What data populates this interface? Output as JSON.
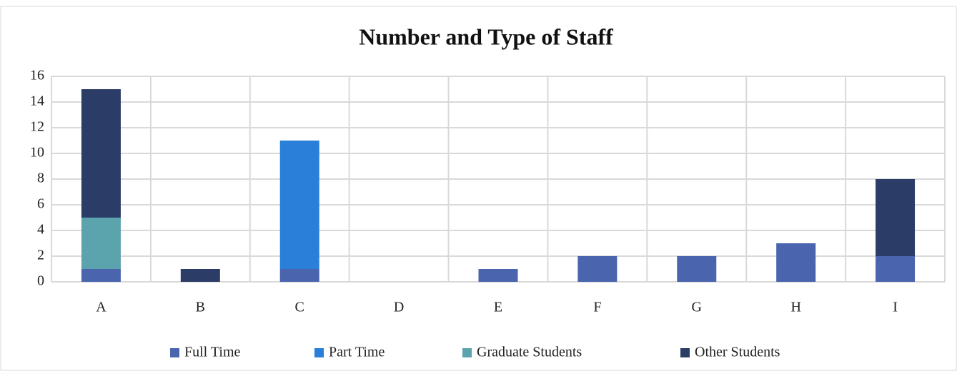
{
  "chart_data": {
    "type": "stacked_bar",
    "title": "Number and Type of Staff",
    "categories": [
      "A",
      "B",
      "C",
      "D",
      "E",
      "F",
      "G",
      "H",
      "I"
    ],
    "series": [
      {
        "name": "Full Time",
        "color": "#4a64ae",
        "values": [
          1,
          0,
          1,
          0,
          1,
          2,
          2,
          3,
          2
        ]
      },
      {
        "name": "Part Time",
        "color": "#2a7fd9",
        "values": [
          0,
          0,
          10,
          0,
          0,
          0,
          0,
          0,
          0
        ]
      },
      {
        "name": "Graduate Students",
        "color": "#5ba3ad",
        "values": [
          4,
          0,
          0,
          0,
          0,
          0,
          0,
          0,
          0
        ]
      },
      {
        "name": "Other Students",
        "color": "#2b3c66",
        "values": [
          10,
          1,
          0,
          0,
          0,
          0,
          0,
          0,
          6
        ]
      }
    ],
    "ylim": [
      0,
      16
    ],
    "yticks": [
      0,
      2,
      4,
      6,
      8,
      10,
      12,
      14,
      16
    ],
    "grid": true,
    "legend": "bottom"
  }
}
